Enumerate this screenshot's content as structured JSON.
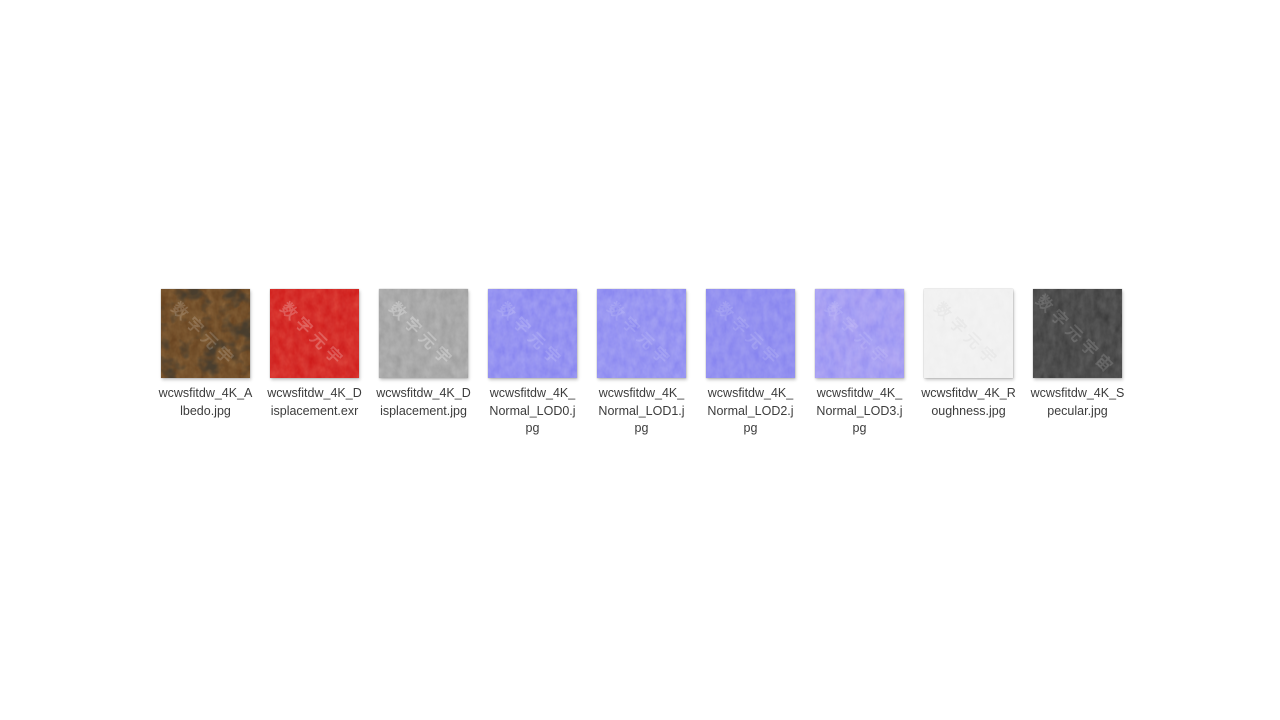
{
  "page": {
    "background_color": "#ffffff",
    "label_color": "#3c3c3c",
    "view": "thumbnail-grid"
  },
  "watermark_full_text": "数字元宇宙",
  "files": [
    {
      "name": "wcwsfitdw_4K_Albedo.jpg",
      "lines": [
        "wcwsfitdw_4K_A",
        "lbedo.jpg"
      ],
      "map_type": "albedo",
      "base_color": "#5e3716",
      "tint_light": "#7c4c1e",
      "tint_dark": "#2a1808",
      "blotch_color": "#0e0b07",
      "watermark": "数字元宇",
      "wm_color": "#ffffff",
      "wm_opacity": "0.16"
    },
    {
      "name": "wcwsfitdw_4K_Displacement.exr",
      "lines": [
        "wcwsfitdw_4K_D",
        "isplacement.exr"
      ],
      "map_type": "displacement-exr",
      "base_color": "#cd1010",
      "tint_light": "#e83322",
      "tint_dark": "#9b0808",
      "blotch_color": null,
      "watermark": "数字元宇",
      "wm_color": "#ffffff",
      "wm_opacity": "0.22"
    },
    {
      "name": "wcwsfitdw_4K_Displacement.jpg",
      "lines": [
        "wcwsfitdw_4K_D",
        "isplacement.jpg"
      ],
      "map_type": "displacement-jpg",
      "base_color": "#949494",
      "tint_light": "#b2b2b2",
      "tint_dark": "#737373",
      "blotch_color": null,
      "watermark": "数字元宇",
      "wm_color": "#ffffff",
      "wm_opacity": "0.28"
    },
    {
      "name": "wcwsfitdw_4K_Normal_LOD0.jpg",
      "lines": [
        "wcwsfitdw_4K_",
        "Normal_LOD0.j",
        "pg"
      ],
      "map_type": "normal-lod0",
      "base_color": "#7b78ef",
      "tint_light": "#938ff8",
      "tint_dark": "#615ed6",
      "blotch_color": null,
      "watermark": "数字元宇",
      "wm_color": "#ffffff",
      "wm_opacity": "0.14"
    },
    {
      "name": "wcwsfitdw_4K_Normal_LOD1.jpg",
      "lines": [
        "wcwsfitdw_4K_",
        "Normal_LOD1.j",
        "pg"
      ],
      "map_type": "normal-lod1",
      "base_color": "#7d7af0",
      "tint_light": "#9592f8",
      "tint_dark": "#6865d8",
      "blotch_color": null,
      "watermark": "数字元宇",
      "wm_color": "#ffffff",
      "wm_opacity": "0.12"
    },
    {
      "name": "wcwsfitdw_4K_Normal_LOD2.jpg",
      "lines": [
        "wcwsfitdw_4K_",
        "Normal_LOD2.j",
        "pg"
      ],
      "map_type": "normal-lod2",
      "base_color": "#7c79ef",
      "tint_light": "#9document90f8",
      "tint_dark": "#6663d7",
      "blotch_color": null,
      "watermark": "数字元宇",
      "wm_color": "#ffffff",
      "wm_opacity": "0.12"
    },
    {
      "name": "wcwsfitdw_4K_Normal_LOD3.jpg",
      "lines": [
        "wcwsfitdw_4K_",
        "Normal_LOD3.j",
        "pg"
      ],
      "map_type": "normal-lod3",
      "base_color": "#7f7bef",
      "tint_light": "#928ef7",
      "tint_dark": "#6turn5f62dc",
      "tint_accent": "#a77fe0",
      "blotch_color": null,
      "watermark": "数字元宇",
      "wm_color": "#ffffff",
      "wm_opacity": "0.10"
    },
    {
      "name": "wcwsfitdw_4K_Roughness.jpg",
      "lines": [
        "wcwsfitdw_4K_R",
        "oughness.jpg"
      ],
      "map_type": "roughness",
      "base_color": "#ededed",
      "tint_light": "#f9f9f9",
      "tint_dark": "#dddddd",
      "blotch_color": null,
      "watermark": "数字元宇",
      "wm_color": "#aaaaaa",
      "wm_opacity": "0.10"
    },
    {
      "name": "wcwsfitdw_4K_Specular.jpg",
      "lines": [
        "wcwsfitdw_4K_S",
        "pecular.jpg"
      ],
      "map_type": "specular",
      "base_color": "#2e2e2e",
      "tint_light": "#3a3a3a",
      "tint_dark": "#232323",
      "blotch_color": null,
      "watermark": "数字元宇宙",
      "wm_color": "#ffffff",
      "wm_opacity": "0.14"
    }
  ]
}
